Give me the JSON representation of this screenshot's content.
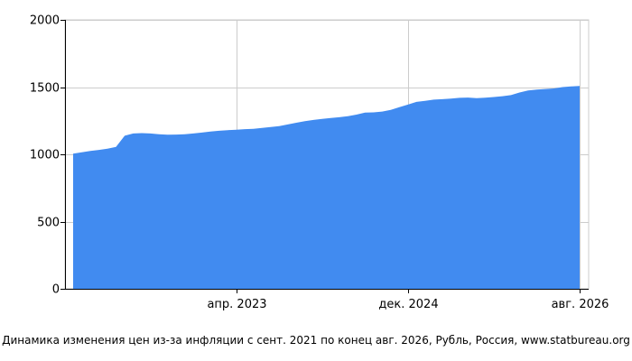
{
  "chart_data": {
    "type": "area",
    "title": "",
    "caption": "Динамика изменения цен из-за инфляции с сент. 2021 по конец авг. 2026, Рубль, Россия, www.statbureau.org",
    "xlabel": "",
    "ylabel": "",
    "ylim": [
      0,
      2000
    ],
    "y_ticks": [
      0,
      500,
      1000,
      1500,
      2000
    ],
    "x_range": [
      "2021-09",
      "2026-08"
    ],
    "x_ticks": [
      {
        "date": "2023-04",
        "label": "апр. 2023"
      },
      {
        "date": "2024-12",
        "label": "дек. 2024"
      },
      {
        "date": "2026-08",
        "label": "авг. 2026"
      }
    ],
    "grid": true,
    "legend": "none",
    "color": "#418bf0",
    "series": [
      {
        "x": [
          "2021-09",
          "2021-10",
          "2021-11",
          "2021-12",
          "2022-01",
          "2022-02",
          "2022-03",
          "2022-04",
          "2022-05",
          "2022-06",
          "2022-07",
          "2022-08",
          "2022-09",
          "2022-10",
          "2022-11",
          "2022-12",
          "2023-01",
          "2023-02",
          "2023-03",
          "2023-04",
          "2023-05",
          "2023-06",
          "2023-07",
          "2023-08",
          "2023-09",
          "2023-10",
          "2023-11",
          "2023-12",
          "2024-01",
          "2024-02",
          "2024-03",
          "2024-04",
          "2024-05",
          "2024-06",
          "2024-07",
          "2024-08",
          "2024-09",
          "2024-10",
          "2024-11",
          "2024-12",
          "2025-01",
          "2025-02",
          "2025-03",
          "2025-04",
          "2025-05",
          "2025-06",
          "2025-07",
          "2025-08",
          "2025-09",
          "2025-10",
          "2025-11",
          "2025-12",
          "2026-01",
          "2026-02",
          "2026-03",
          "2026-04",
          "2026-05",
          "2026-06",
          "2026-07",
          "2026-08"
        ],
        "values": [
          1005,
          1015,
          1025,
          1033,
          1042,
          1055,
          1138,
          1155,
          1158,
          1155,
          1150,
          1146,
          1147,
          1150,
          1155,
          1162,
          1170,
          1175,
          1180,
          1183,
          1187,
          1190,
          1196,
          1203,
          1210,
          1222,
          1235,
          1246,
          1256,
          1264,
          1270,
          1276,
          1284,
          1295,
          1310,
          1312,
          1318,
          1330,
          1350,
          1370,
          1390,
          1398,
          1407,
          1410,
          1415,
          1420,
          1422,
          1418,
          1421,
          1426,
          1432,
          1440,
          1460,
          1475,
          1482,
          1486,
          1490,
          1500,
          1505,
          1508
        ]
      }
    ]
  }
}
